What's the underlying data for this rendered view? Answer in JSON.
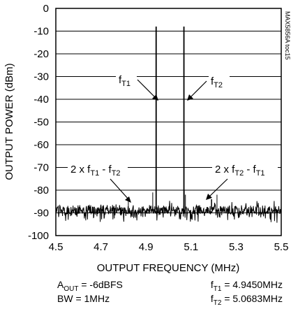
{
  "chart_data": {
    "type": "line",
    "xlabel": "OUTPUT FREQUENCY (MHz)",
    "ylabel": "OUTPUT POWER (dBm)",
    "xlim": [
      4.5,
      5.5
    ],
    "ylim": [
      -100,
      0
    ],
    "x_ticks": [
      "4.5",
      "4.7",
      "4.9",
      "5.1",
      "5.3",
      "5.5"
    ],
    "y_ticks": [
      "0",
      "-10",
      "-20",
      "-30",
      "-40",
      "-50",
      "-60",
      "-70",
      "-80",
      "-90",
      "-100"
    ],
    "grid": "horizontal",
    "noise_floor_dbm": -88.5,
    "tones": [
      {
        "label": "f",
        "sub": "T1",
        "freq_mhz": 4.945,
        "power_dbm": -8
      },
      {
        "label": "f",
        "sub": "T2",
        "freq_mhz": 5.0683,
        "power_dbm": -8
      }
    ],
    "imd_products": [
      {
        "label": "2 x f",
        "sub1": "T1",
        "mid": " - f",
        "sub2": "T2",
        "freq_mhz": 4.8217,
        "power_dbm": -85
      },
      {
        "label": "2 x f",
        "sub1": "T2",
        "mid": " - f",
        "sub2": "T1",
        "freq_mhz": 5.1916,
        "power_dbm": -84
      }
    ],
    "spurs": [
      {
        "freq_mhz": 4.93,
        "power_dbm": -81
      },
      {
        "freq_mhz": 5.07,
        "power_dbm": -80
      },
      {
        "freq_mhz": 5.075,
        "power_dbm": -82
      },
      {
        "freq_mhz": 5.19,
        "power_dbm": -84
      },
      {
        "freq_mhz": 5.215,
        "power_dbm": -82
      }
    ]
  },
  "conditions": {
    "aout": {
      "pre": "A",
      "sub": "OUT",
      "post": " = -6dBFS"
    },
    "bw": "BW = 1MHz",
    "ft1": {
      "pre": "f",
      "sub": "T1",
      "post": " = 4.9450MHz"
    },
    "ft2": {
      "pre": "f",
      "sub": "T2",
      "post": " = 5.0683MHz"
    }
  },
  "figure_code": "MAX5856A toc15"
}
